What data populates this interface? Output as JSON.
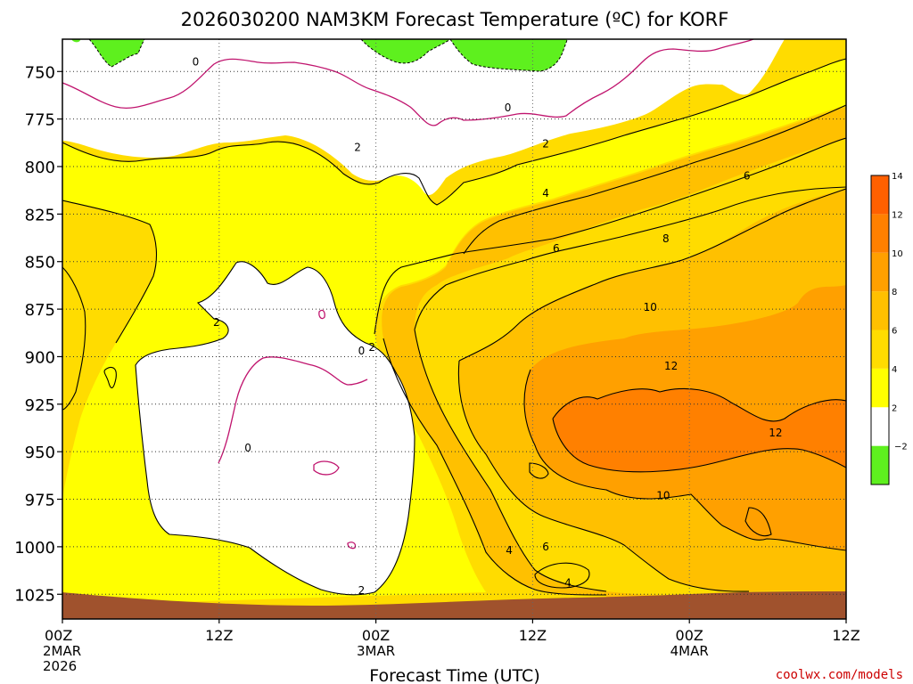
{
  "chart_data": {
    "type": "heatmap",
    "title": "2026030200 NAM3KM Forecast Temperature (ºC) for KORF",
    "xlabel": "Forecast Time (UTC)",
    "watermark": "coolwx.com/models",
    "x_ticks": [
      {
        "label": "00Z",
        "sub1": "2MAR",
        "sub2": "2026",
        "hour": 0
      },
      {
        "label": "12Z",
        "sub1": "",
        "sub2": "",
        "hour": 12
      },
      {
        "label": "00Z",
        "sub1": "3MAR",
        "sub2": "",
        "hour": 24
      },
      {
        "label": "12Z",
        "sub1": "",
        "sub2": "",
        "hour": 36
      },
      {
        "label": "00Z",
        "sub1": "4MAR",
        "sub2": "",
        "hour": 48
      },
      {
        "label": "12Z",
        "sub1": "",
        "sub2": "",
        "hour": 60
      }
    ],
    "xlim_hours": [
      0,
      60
    ],
    "y_ticks": [
      "750",
      "775",
      "800",
      "825",
      "850",
      "875",
      "900",
      "925",
      "950",
      "975",
      "1000",
      "1025"
    ],
    "y_values": [
      750,
      775,
      800,
      825,
      850,
      875,
      900,
      925,
      950,
      975,
      1000,
      1025
    ],
    "ylim_hpa": [
      733,
      1038
    ],
    "grid": true,
    "colorbar": {
      "levels": [
        -2,
        2,
        4,
        6,
        8,
        10,
        12,
        14
      ],
      "labels": [
        "−2",
        "2",
        "4",
        "6",
        "8",
        "10",
        "12",
        "14"
      ],
      "colors": [
        "#5ef01e",
        "#ffffff",
        "#ffff00",
        "#ffdc00",
        "#ffc000",
        "#ffa000",
        "#ff8000",
        "#ff6000"
      ]
    },
    "contour_labels": [
      {
        "text": "0",
        "hour": 10.2,
        "hpa": 745
      },
      {
        "text": "0",
        "hour": 34.1,
        "hpa": 769
      },
      {
        "text": "2",
        "hour": 22.6,
        "hpa": 790
      },
      {
        "text": "2",
        "hour": 37.0,
        "hpa": 788
      },
      {
        "text": "4",
        "hour": 37.0,
        "hpa": 814
      },
      {
        "text": "6",
        "hour": 37.8,
        "hpa": 843
      },
      {
        "text": "6",
        "hour": 52.4,
        "hpa": 805
      },
      {
        "text": "8",
        "hour": 46.2,
        "hpa": 838
      },
      {
        "text": "10",
        "hour": 45.0,
        "hpa": 874
      },
      {
        "text": "12",
        "hour": 46.6,
        "hpa": 905
      },
      {
        "text": "12",
        "hour": 54.6,
        "hpa": 940
      },
      {
        "text": "2",
        "hour": 11.8,
        "hpa": 882
      },
      {
        "text": "0",
        "hour": 14.2,
        "hpa": 948
      },
      {
        "text": "0",
        "hour": 22.9,
        "hpa": 897
      },
      {
        "text": "2",
        "hour": 23.7,
        "hpa": 895
      },
      {
        "text": "10",
        "hour": 46.0,
        "hpa": 973
      },
      {
        "text": "4",
        "hour": 34.2,
        "hpa": 1002
      },
      {
        "text": "6",
        "hour": 37.0,
        "hpa": 1000
      },
      {
        "text": "4",
        "hour": 38.7,
        "hpa": 1019
      },
      {
        "text": "2",
        "hour": 22.9,
        "hpa": 1023
      }
    ]
  }
}
